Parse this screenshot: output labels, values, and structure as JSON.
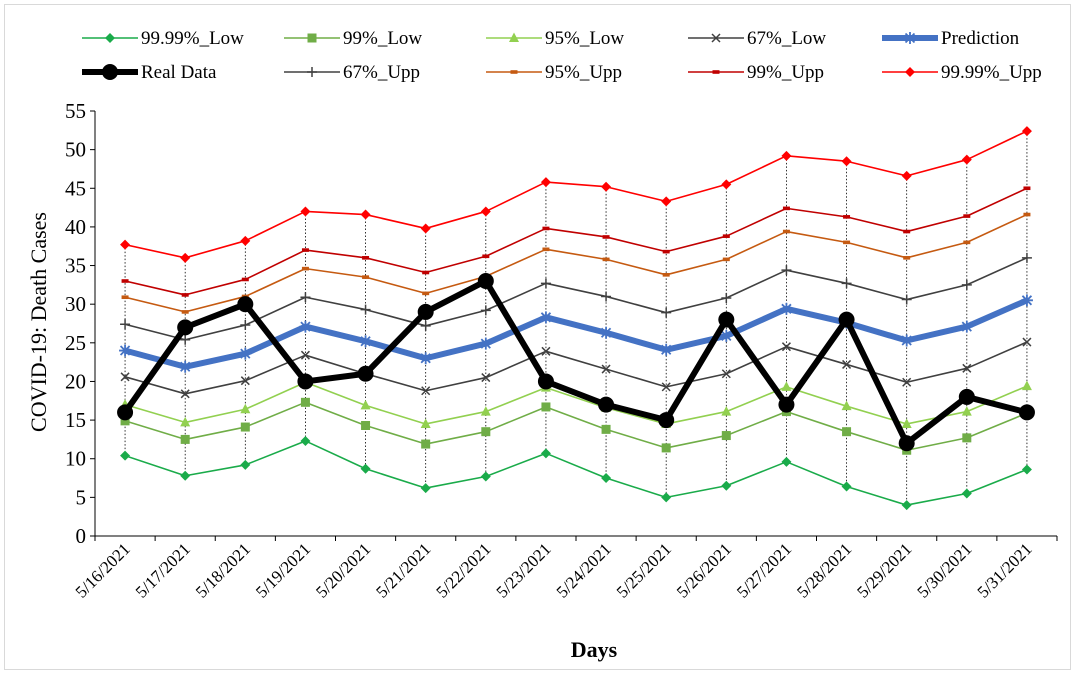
{
  "chart_data": {
    "type": "line",
    "xlabel": "Days",
    "ylabel": "COVID-19: Death Cases",
    "ylim": [
      0,
      55
    ],
    "yticks": [
      0,
      5,
      10,
      15,
      20,
      25,
      30,
      35,
      40,
      45,
      50,
      55
    ],
    "grid": false,
    "legend_position": "top",
    "high_low_lines": true,
    "categories": [
      "5/16/2021",
      "5/17/2021",
      "5/18/2021",
      "5/19/2021",
      "5/20/2021",
      "5/21/2021",
      "5/22/2021",
      "5/23/2021",
      "5/24/2021",
      "5/25/2021",
      "5/26/2021",
      "5/27/2021",
      "5/28/2021",
      "5/29/2021",
      "5/30/2021",
      "5/31/2021"
    ],
    "series": [
      {
        "name": "99.99%_Low",
        "color": "#1aab4a",
        "marker": "diamond",
        "values": [
          10.4,
          7.8,
          9.2,
          12.3,
          8.7,
          6.2,
          7.7,
          10.7,
          7.5,
          5.0,
          6.5,
          9.6,
          6.4,
          4.0,
          5.5,
          8.6
        ]
      },
      {
        "name": "99%_Low",
        "color": "#70ad47",
        "marker": "square",
        "values": [
          14.9,
          12.5,
          14.1,
          17.3,
          14.3,
          11.9,
          13.5,
          16.7,
          13.8,
          11.4,
          13.0,
          16.1,
          13.5,
          11.1,
          12.7,
          15.9
        ]
      },
      {
        "name": "95%_Low",
        "color": "#92d050",
        "marker": "triangle",
        "values": [
          17.0,
          14.7,
          16.4,
          19.9,
          16.9,
          14.5,
          16.1,
          19.2,
          16.6,
          14.5,
          16.1,
          19.3,
          16.8,
          14.5,
          16.1,
          19.4
        ]
      },
      {
        "name": "67%_Low",
        "color": "#404040",
        "marker": "x",
        "values": [
          20.6,
          18.4,
          20.1,
          23.4,
          21.0,
          18.8,
          20.5,
          23.9,
          21.6,
          19.3,
          21.0,
          24.5,
          22.2,
          19.9,
          21.7,
          25.1
        ]
      },
      {
        "name": "Prediction",
        "color": "#4472c4",
        "marker": "star",
        "width": 6,
        "values": [
          24.0,
          21.9,
          23.6,
          27.1,
          25.2,
          23.0,
          24.9,
          28.3,
          26.3,
          24.1,
          25.9,
          29.4,
          27.6,
          25.3,
          27.1,
          30.5
        ]
      },
      {
        "name": "Real Data",
        "color": "#000000",
        "marker": "circle",
        "width": 6,
        "values": [
          16,
          27,
          30,
          20,
          21,
          29,
          33,
          20,
          17,
          15,
          28,
          17,
          28,
          12,
          18,
          16
        ]
      },
      {
        "name": "67%_Upp",
        "color": "#404040",
        "marker": "plus",
        "values": [
          27.4,
          25.4,
          27.3,
          30.9,
          29.3,
          27.2,
          29.2,
          32.7,
          31.0,
          28.9,
          30.8,
          34.4,
          32.7,
          30.6,
          32.5,
          36.0
        ]
      },
      {
        "name": "95%_Upp",
        "color": "#c55a11",
        "marker": "dash",
        "values": [
          30.9,
          29.0,
          31.0,
          34.6,
          33.5,
          31.4,
          33.6,
          37.1,
          35.8,
          33.8,
          35.8,
          39.4,
          38.0,
          36.0,
          38.0,
          41.6
        ]
      },
      {
        "name": "99%_Upp",
        "color": "#c00000",
        "marker": "dash",
        "values": [
          33.0,
          31.2,
          33.2,
          37.0,
          36.0,
          34.1,
          36.2,
          39.8,
          38.7,
          36.8,
          38.8,
          42.4,
          41.3,
          39.4,
          41.4,
          45.0
        ]
      },
      {
        "name": "99.99%_Upp",
        "color": "#ff0000",
        "marker": "diamond",
        "values": [
          37.7,
          36.0,
          38.2,
          42.0,
          41.6,
          39.8,
          42.0,
          45.8,
          45.2,
          43.3,
          45.5,
          49.2,
          48.5,
          46.6,
          48.7,
          52.4
        ]
      }
    ]
  }
}
